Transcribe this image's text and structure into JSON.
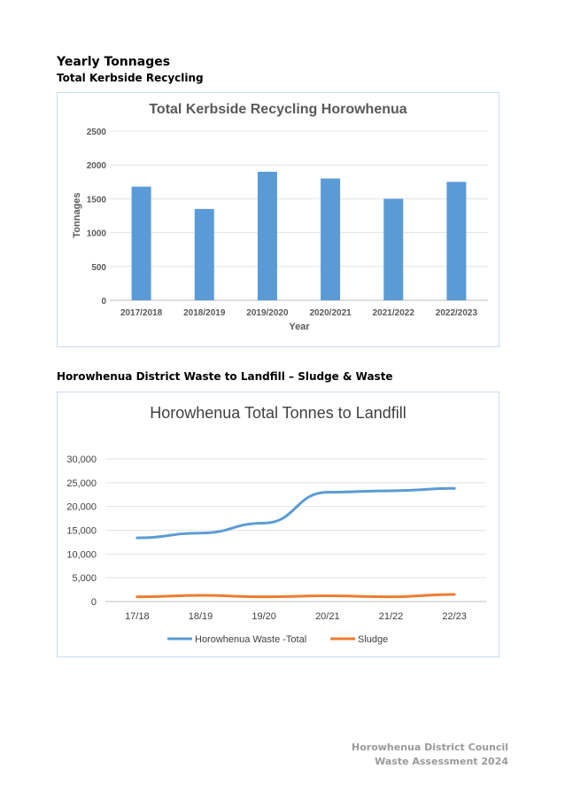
{
  "page": {
    "heading": "Yearly Tonnages",
    "subheading1": "Total Kerbside Recycling",
    "subheading2": "Horowhenua District Waste to Landfill – Sludge & Waste"
  },
  "footer": {
    "line1": "Horowhenua District Council",
    "line2": "Waste Assessment 2024"
  },
  "chart_data": [
    {
      "type": "bar",
      "title": "Total Kerbside Recycling Horowhenua",
      "xlabel": "Year",
      "ylabel": "Tonnages",
      "categories": [
        "2017/2018",
        "2018/2019",
        "2019/2020",
        "2020/2021",
        "2021/2022",
        "2022/2023"
      ],
      "values": [
        1680,
        1350,
        1900,
        1800,
        1500,
        1750
      ],
      "ylim": [
        0,
        2500
      ],
      "yticks": [
        0,
        500,
        1000,
        1500,
        2000,
        2500
      ],
      "ytick_labels": [
        "0",
        "500",
        "1000",
        "1500",
        "2000",
        "2500"
      ],
      "grid": true,
      "bar_color": "#5b9bd5"
    },
    {
      "type": "line",
      "title": "Horowhenua Total Tonnes to Landfill",
      "xlabel": "",
      "ylabel": "",
      "categories": [
        "17/18",
        "18/19",
        "19/20",
        "20/21",
        "21/22",
        "22/23"
      ],
      "series": [
        {
          "name": "Horowhenua Waste -Total",
          "values": [
            13400,
            14400,
            16500,
            23000,
            23300,
            23800
          ],
          "color": "#5b9bd5"
        },
        {
          "name": "Sludge",
          "values": [
            1000,
            1300,
            1000,
            1200,
            1000,
            1500
          ],
          "color": "#ed7d31"
        }
      ],
      "ylim": [
        0,
        30000
      ],
      "yticks": [
        0,
        5000,
        10000,
        15000,
        20000,
        25000,
        30000
      ],
      "ytick_labels": [
        "0",
        "5,000",
        "10,000",
        "15,000",
        "20,000",
        "25,000",
        "30,000"
      ],
      "grid": true,
      "legend": "bottom"
    }
  ]
}
